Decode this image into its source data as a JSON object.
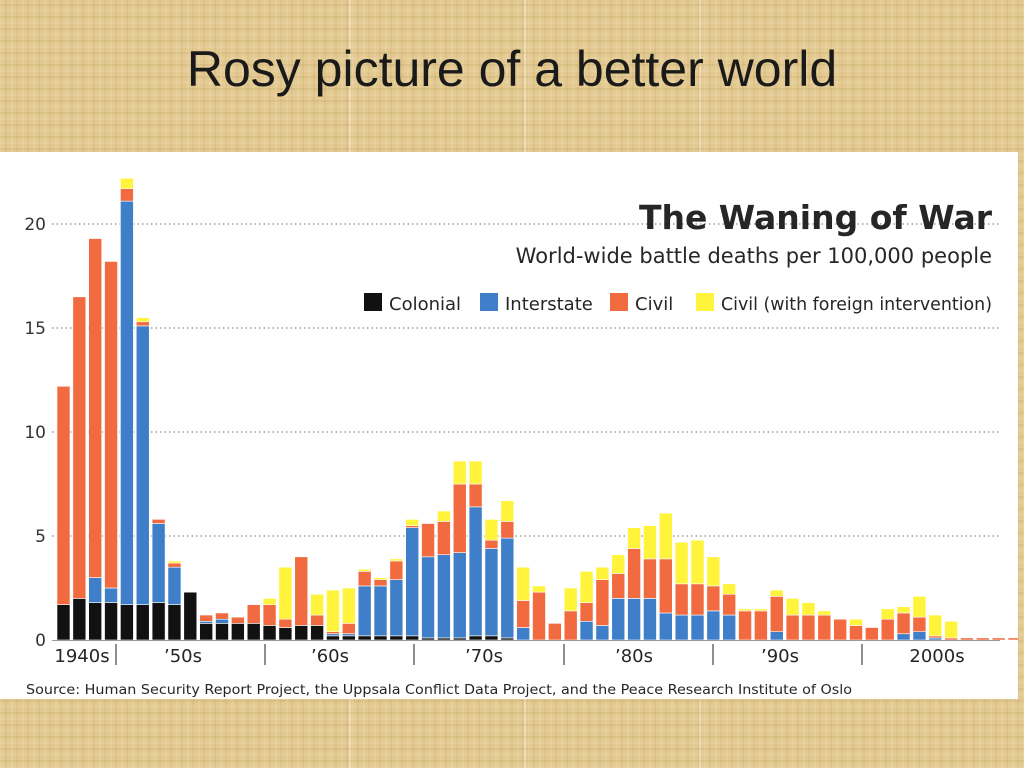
{
  "slide": {
    "title": "Rosy picture of a better world"
  },
  "colors": {
    "colonial": "#111111",
    "interstate": "#3f7ec9",
    "civil": "#f26a3f",
    "civil_intervention": "#fff33c",
    "grid": "#8a8a8a"
  },
  "chart_data": {
    "type": "bar",
    "stacked": true,
    "title": "The Waning of War",
    "subtitle": "World-wide battle deaths per 100,000 people",
    "ylim": [
      0,
      22
    ],
    "yticks": [
      0,
      5,
      10,
      15,
      20
    ],
    "grid": "horizontal dotted at 5, 10, 15, 20",
    "legend_position": "top-right",
    "x": [
      1946,
      1947,
      1948,
      1949,
      1950,
      1951,
      1952,
      1953,
      1954,
      1955,
      1956,
      1957,
      1958,
      1959,
      1960,
      1961,
      1962,
      1963,
      1964,
      1965,
      1966,
      1967,
      1968,
      1969,
      1970,
      1971,
      1972,
      1973,
      1974,
      1975,
      1976,
      1977,
      1978,
      1979,
      1980,
      1981,
      1982,
      1983,
      1984,
      1985,
      1986,
      1987,
      1988,
      1989,
      1990,
      1991,
      1992,
      1993,
      1994,
      1995,
      1996,
      1997,
      1998,
      1999,
      2000,
      2001,
      2002,
      2003,
      2004,
      2005,
      2006,
      2007,
      2008
    ],
    "decade_labels": [
      {
        "label": "1940s",
        "year": 1946
      },
      {
        "label": "'50s",
        "year": 1950
      },
      {
        "label": "'60s",
        "year": 1960
      },
      {
        "label": "'70s",
        "year": 1970
      },
      {
        "label": "'80s",
        "year": 1980
      },
      {
        "label": "'90s",
        "year": 1990
      },
      {
        "label": "2000s",
        "year": 2000
      }
    ],
    "series": [
      {
        "name": "Colonial",
        "values": [
          1.7,
          2.0,
          1.8,
          1.8,
          1.7,
          1.7,
          1.8,
          1.7,
          2.3,
          0.8,
          0.8,
          0.8,
          0.8,
          0.7,
          0.6,
          0.7,
          0.7,
          0.2,
          0.2,
          0.2,
          0.2,
          0.2,
          0.2,
          0.1,
          0.1,
          0.1,
          0.2,
          0.2,
          0.1,
          0.0,
          0.0,
          0.0,
          0.0,
          0,
          0,
          0,
          0,
          0,
          0,
          0,
          0,
          0,
          0,
          0,
          0,
          0,
          0,
          0,
          0,
          0,
          0,
          0,
          0,
          0,
          0,
          0,
          0,
          0,
          0,
          0,
          0,
          0,
          0
        ]
      },
      {
        "name": "Interstate",
        "values": [
          0.0,
          0.0,
          1.2,
          0.7,
          19.4,
          13.4,
          3.8,
          1.8,
          0.0,
          0.1,
          0.2,
          0.0,
          0.0,
          0.0,
          0.0,
          0.0,
          0.0,
          0.1,
          0.1,
          2.4,
          2.4,
          2.7,
          5.2,
          3.9,
          4.0,
          4.1,
          6.2,
          4.2,
          4.8,
          0.6,
          0.0,
          0.0,
          0.0,
          0.9,
          0.7,
          2.0,
          2.0,
          2.0,
          1.3,
          1.2,
          1.2,
          1.4,
          1.2,
          0.0,
          0.0,
          0.4,
          0.0,
          0.0,
          0.0,
          0.0,
          0.0,
          0.0,
          0.0,
          0.3,
          0.4,
          0.1,
          0.0,
          0.0,
          0.0,
          0.0,
          0.0,
          0.0,
          0.0
        ]
      },
      {
        "name": "Civil",
        "values": [
          10.5,
          14.5,
          16.3,
          15.7,
          0.6,
          0.2,
          0.2,
          0.2,
          0.0,
          0.3,
          0.3,
          0.3,
          0.9,
          1.0,
          0.4,
          3.3,
          0.5,
          0.1,
          0.5,
          0.7,
          0.3,
          0.9,
          0.1,
          1.6,
          1.6,
          3.3,
          1.1,
          0.4,
          0.8,
          1.3,
          2.3,
          0.8,
          1.4,
          0.9,
          2.2,
          1.2,
          2.4,
          1.9,
          2.6,
          1.5,
          1.5,
          1.2,
          1.0,
          1.4,
          1.4,
          1.7,
          1.2,
          1.2,
          1.2,
          1.0,
          0.7,
          0.6,
          1.0,
          1.0,
          0.7,
          0.1,
          0.1,
          0.1,
          0.1,
          0.1,
          0.1,
          0.1,
          0.2
        ]
      },
      {
        "name": "Civil (with foreign intervention)",
        "values": [
          0,
          0,
          0,
          0,
          0.5,
          0.2,
          0.0,
          0.1,
          0.0,
          0.0,
          0.0,
          0.0,
          0.0,
          0.3,
          2.5,
          0.0,
          1.0,
          2.0,
          1.7,
          0.1,
          0.1,
          0.1,
          0.3,
          0.0,
          0.5,
          1.1,
          1.1,
          1.0,
          1.0,
          1.6,
          0.3,
          0.0,
          1.1,
          1.5,
          0.6,
          0.9,
          1.0,
          1.6,
          2.2,
          2.0,
          2.1,
          1.4,
          0.5,
          0.1,
          0.1,
          0.3,
          0.8,
          0.6,
          0.2,
          0.0,
          0.3,
          0.0,
          0.5,
          0.3,
          1.0,
          1.0,
          0.8,
          0.0,
          0.0,
          0.0,
          0.0,
          0.0,
          0.0
        ]
      }
    ],
    "source": "Source: Human Security Report Project, the Uppsala Conflict Data Project, and the Peace Research Institute of Oslo"
  }
}
